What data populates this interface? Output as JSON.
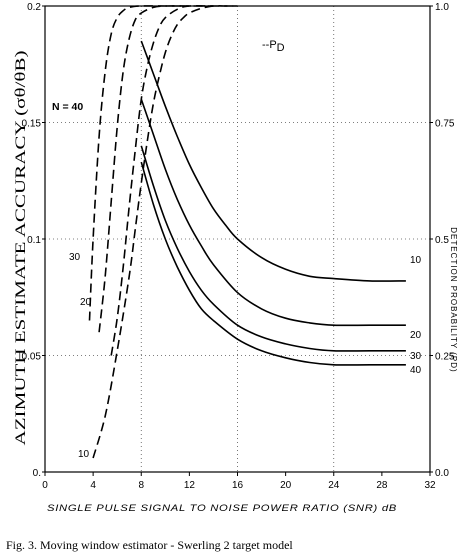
{
  "chart_data": {
    "type": "line",
    "xlabel": "SINGLE PULSE SIGNAL TO NOISE POWER RATIO (SNR) dB",
    "ylabel": "AZIMUTH ESTIMATE ACCURACY (σθ/θB)",
    "y2label": "DETECTION PROBABILITY (PD)",
    "xlim": [
      0,
      32
    ],
    "ylim": [
      0,
      0.2
    ],
    "y2lim": [
      0,
      1.0
    ],
    "x_ticks": [
      "0",
      "4",
      "8",
      "12",
      "16",
      "20",
      "24",
      "28",
      "32"
    ],
    "y_ticks": [
      "0.",
      "0.05",
      "0.1",
      "0.15",
      "0.2"
    ],
    "y2_ticks": [
      "0.0",
      "0.25",
      "0.5",
      "0.75",
      "1.0"
    ],
    "grid": "dotted",
    "legend": {
      "label": "--P",
      "subscript": "D",
      "position": "top-right"
    },
    "accuracy_series": [
      {
        "name": "10",
        "x": [
          8,
          9,
          10,
          11,
          12,
          13,
          14,
          15,
          16,
          18,
          20,
          22,
          24,
          27,
          30
        ],
        "y": [
          0.185,
          0.171,
          0.157,
          0.144,
          0.132,
          0.122,
          0.113,
          0.106,
          0.1,
          0.092,
          0.087,
          0.084,
          0.083,
          0.082,
          0.082
        ]
      },
      {
        "name": "20",
        "x": [
          8,
          9,
          10,
          11,
          12,
          13,
          14,
          16,
          18,
          20,
          22,
          24,
          27,
          30
        ],
        "y": [
          0.16,
          0.145,
          0.13,
          0.117,
          0.106,
          0.097,
          0.089,
          0.077,
          0.07,
          0.066,
          0.064,
          0.063,
          0.063,
          0.063
        ]
      },
      {
        "name": "30",
        "x": [
          8,
          9,
          10,
          11,
          12,
          13,
          14,
          16,
          18,
          20,
          22,
          24,
          27,
          30
        ],
        "y": [
          0.14,
          0.123,
          0.108,
          0.096,
          0.086,
          0.078,
          0.072,
          0.063,
          0.058,
          0.055,
          0.053,
          0.052,
          0.052,
          0.052
        ]
      },
      {
        "name": "40",
        "x": [
          8,
          9,
          10,
          11,
          12,
          13,
          14,
          16,
          18,
          20,
          22,
          24,
          27,
          30
        ],
        "y": [
          0.133,
          0.115,
          0.1,
          0.088,
          0.078,
          0.07,
          0.065,
          0.057,
          0.052,
          0.049,
          0.047,
          0.046,
          0.046,
          0.046
        ]
      }
    ],
    "pd_series": [
      {
        "name": "N=40",
        "x": [
          3.7,
          4.0,
          4.5,
          5.0,
          5.5,
          6.0,
          6.5,
          7.0,
          8.0,
          10.0,
          12.0
        ],
        "y": [
          0.325,
          0.5,
          0.72,
          0.86,
          0.94,
          0.975,
          0.99,
          0.997,
          1.0,
          1.0,
          1.0
        ]
      },
      {
        "name": "30",
        "x": [
          4.5,
          5.0,
          5.5,
          6.0,
          6.5,
          7.0,
          7.5,
          8.0,
          9.0,
          10.0,
          12.0,
          14.0
        ],
        "y": [
          0.3,
          0.42,
          0.58,
          0.74,
          0.86,
          0.93,
          0.97,
          0.985,
          0.997,
          1.0,
          1.0,
          1.0
        ]
      },
      {
        "name": "20",
        "x": [
          5.5,
          6.0,
          6.5,
          7.0,
          7.5,
          8.0,
          8.5,
          9.0,
          9.5,
          10.0,
          11.0,
          12.0,
          14.0,
          16.0
        ],
        "y": [
          0.25,
          0.33,
          0.44,
          0.57,
          0.69,
          0.8,
          0.87,
          0.92,
          0.955,
          0.975,
          0.993,
          1.0,
          1.0,
          1.0
        ]
      },
      {
        "name": "10",
        "x": [
          4.0,
          5.0,
          6.0,
          7.0,
          7.5,
          8.0,
          8.5,
          9.0,
          9.5,
          10.0,
          10.5,
          11.0,
          11.5,
          12.0,
          13.0,
          14.0,
          15.0,
          16.0
        ],
        "y": [
          0.03,
          0.12,
          0.26,
          0.42,
          0.52,
          0.62,
          0.71,
          0.79,
          0.85,
          0.9,
          0.935,
          0.96,
          0.975,
          0.985,
          0.995,
          1.0,
          1.0,
          1.0
        ]
      }
    ],
    "annotations": {
      "n40": "N = 40",
      "pd30": "30",
      "pd20": "20",
      "pd10": "10",
      "acc10": "10",
      "acc20": "20",
      "acc30": "30",
      "acc40": "40"
    }
  },
  "caption": "Fig. 3. Moving window estimator - Swerling 2 target model"
}
